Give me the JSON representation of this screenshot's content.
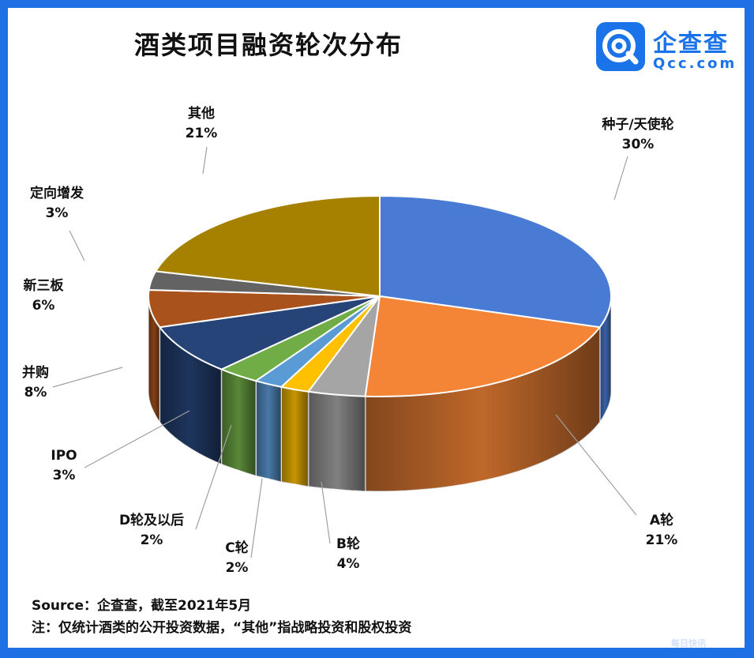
{
  "title": "酒类项目融资轮次分布",
  "logo": {
    "name": "企查查",
    "domain": "Qcc.com"
  },
  "source": "Source：企查查，截至2021年5月",
  "note": "注：仅统计酒类的公开投资数据，“其他”指战略投资和股权投资",
  "bottom_mark": "每日快讯",
  "chart_data": {
    "type": "pie",
    "style": "3d",
    "slices": [
      {
        "label": "种子/天使轮",
        "value": 30,
        "pct": "30%",
        "color": "#4a7bd4"
      },
      {
        "label": "A轮",
        "value": 21,
        "pct": "21%",
        "color": "#f58536"
      },
      {
        "label": "B轮",
        "value": 4,
        "pct": "4%",
        "color": "#a5a5a5"
      },
      {
        "label": "C轮",
        "value": 2,
        "pct": "2%",
        "color": "#ffc000"
      },
      {
        "label": "D轮及以后",
        "value": 2,
        "pct": "2%",
        "color": "#5b9bd5"
      },
      {
        "label": "IPO",
        "value": 3,
        "pct": "3%",
        "color": "#70ad47"
      },
      {
        "label": "并购",
        "value": 8,
        "pct": "8%",
        "color": "#264478"
      },
      {
        "label": "新三板",
        "value": 6,
        "pct": "6%",
        "color": "#a9521c"
      },
      {
        "label": "定向增发",
        "value": 3,
        "pct": "3%",
        "color": "#636363"
      },
      {
        "label": "其他",
        "value": 21,
        "pct": "21%",
        "color": "#a68100"
      }
    ]
  }
}
